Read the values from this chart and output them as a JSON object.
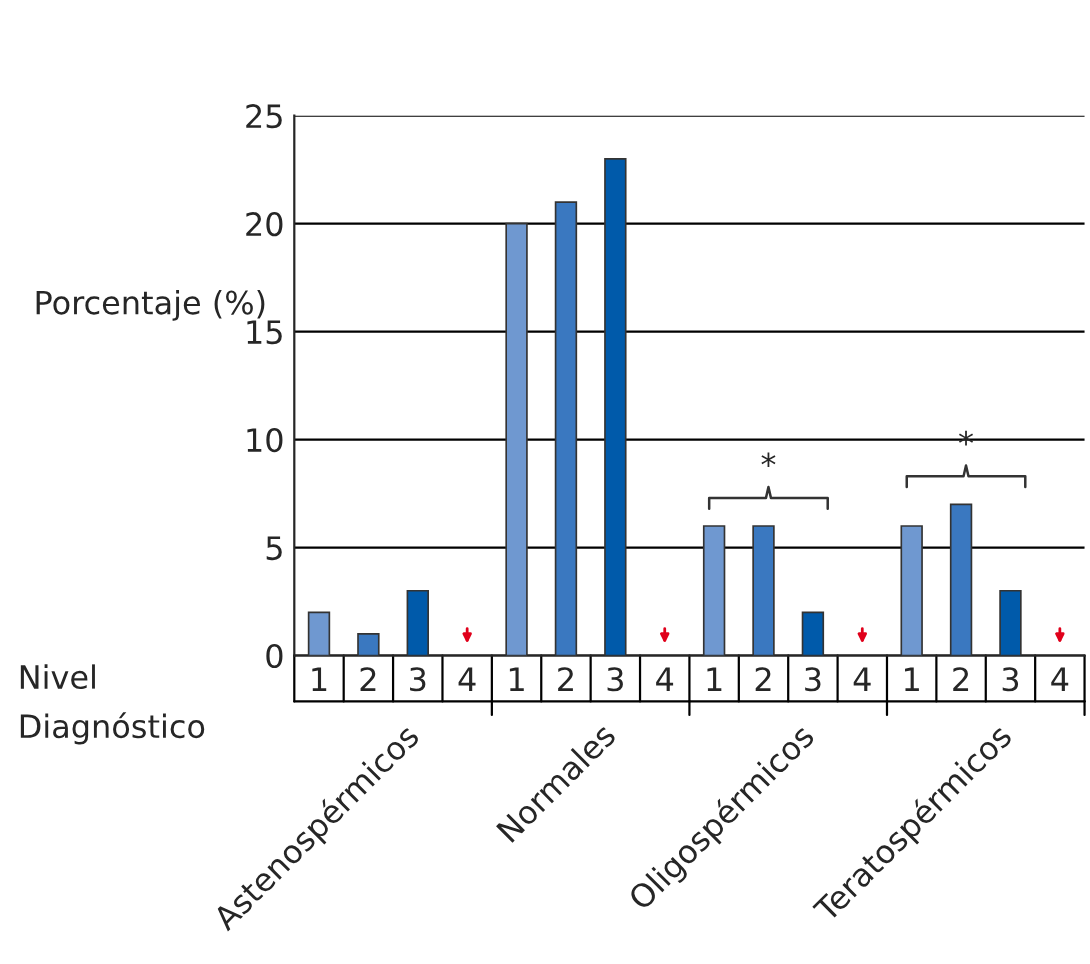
{
  "chart_data": {
    "type": "bar",
    "ylabel": "Porcentaje (%)",
    "xlabel": "Nivel\nDiagnóstico",
    "categories": [
      "1",
      "2",
      "3",
      "4",
      "1",
      "2",
      "3",
      "4",
      "1",
      "2",
      "3",
      "4",
      "1",
      "2",
      "3",
      "4"
    ],
    "values": [
      2,
      1,
      3,
      null,
      20,
      21,
      23,
      null,
      6,
      6,
      2,
      null,
      6,
      7,
      3,
      null
    ],
    "colors": [
      "#6f98d0",
      "#3a78c0",
      "#005aaa",
      "#005aaa",
      "#6f98d0",
      "#3a78c0",
      "#005aaa",
      "#005aaa",
      "#6f98d0",
      "#3a78c0",
      "#005aaa",
      "#005aaa",
      "#6f98d0",
      "#3a78c0",
      "#005aaa",
      "#005aaa"
    ],
    "ylim": [
      0,
      25
    ],
    "yticks": [
      0,
      5,
      10,
      15,
      20,
      25
    ],
    "grid": "y",
    "annotations": [
      "Astenospérmicos",
      "Normales",
      "Oligospérmicos",
      "Teratospérmicos",
      "*",
      "*"
    ]
  }
}
